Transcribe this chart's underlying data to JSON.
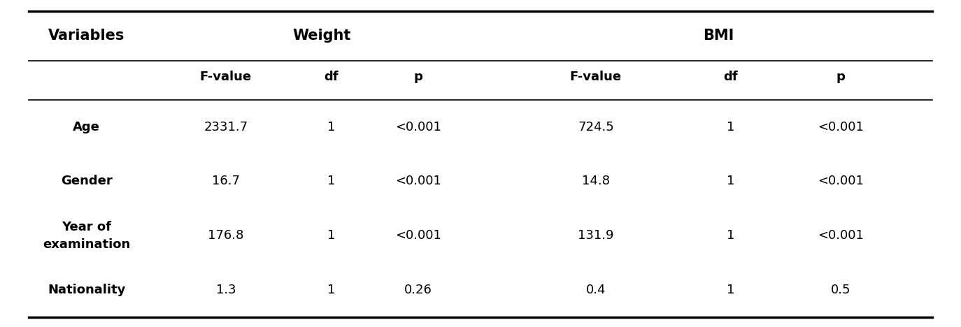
{
  "col_headers_row1_vars": "Variables",
  "col_headers_row1_weight": "Weight",
  "col_headers_row1_bmi": "BMI",
  "col_headers_row2": [
    "F-value",
    "df",
    "p",
    "F-value",
    "df",
    "p"
  ],
  "rows": [
    [
      "Age",
      "2331.7",
      "1",
      "<0.001",
      "724.5",
      "1",
      "<0.001"
    ],
    [
      "Gender",
      "16.7",
      "1",
      "<0.001",
      "14.8",
      "1",
      "<0.001"
    ],
    [
      "Year of\nexamination",
      "176.8",
      "1",
      "<0.001",
      "131.9",
      "1",
      "<0.001"
    ],
    [
      "Nationality",
      "1.3",
      "1",
      "0.26",
      "0.4",
      "1",
      "0.5"
    ]
  ],
  "figsize": [
    13.74,
    4.68
  ],
  "dpi": 100,
  "table_bg": "#ffffff",
  "header1_fontsize": 15,
  "header2_fontsize": 13,
  "data_fontsize": 13,
  "var_fontsize": 13
}
